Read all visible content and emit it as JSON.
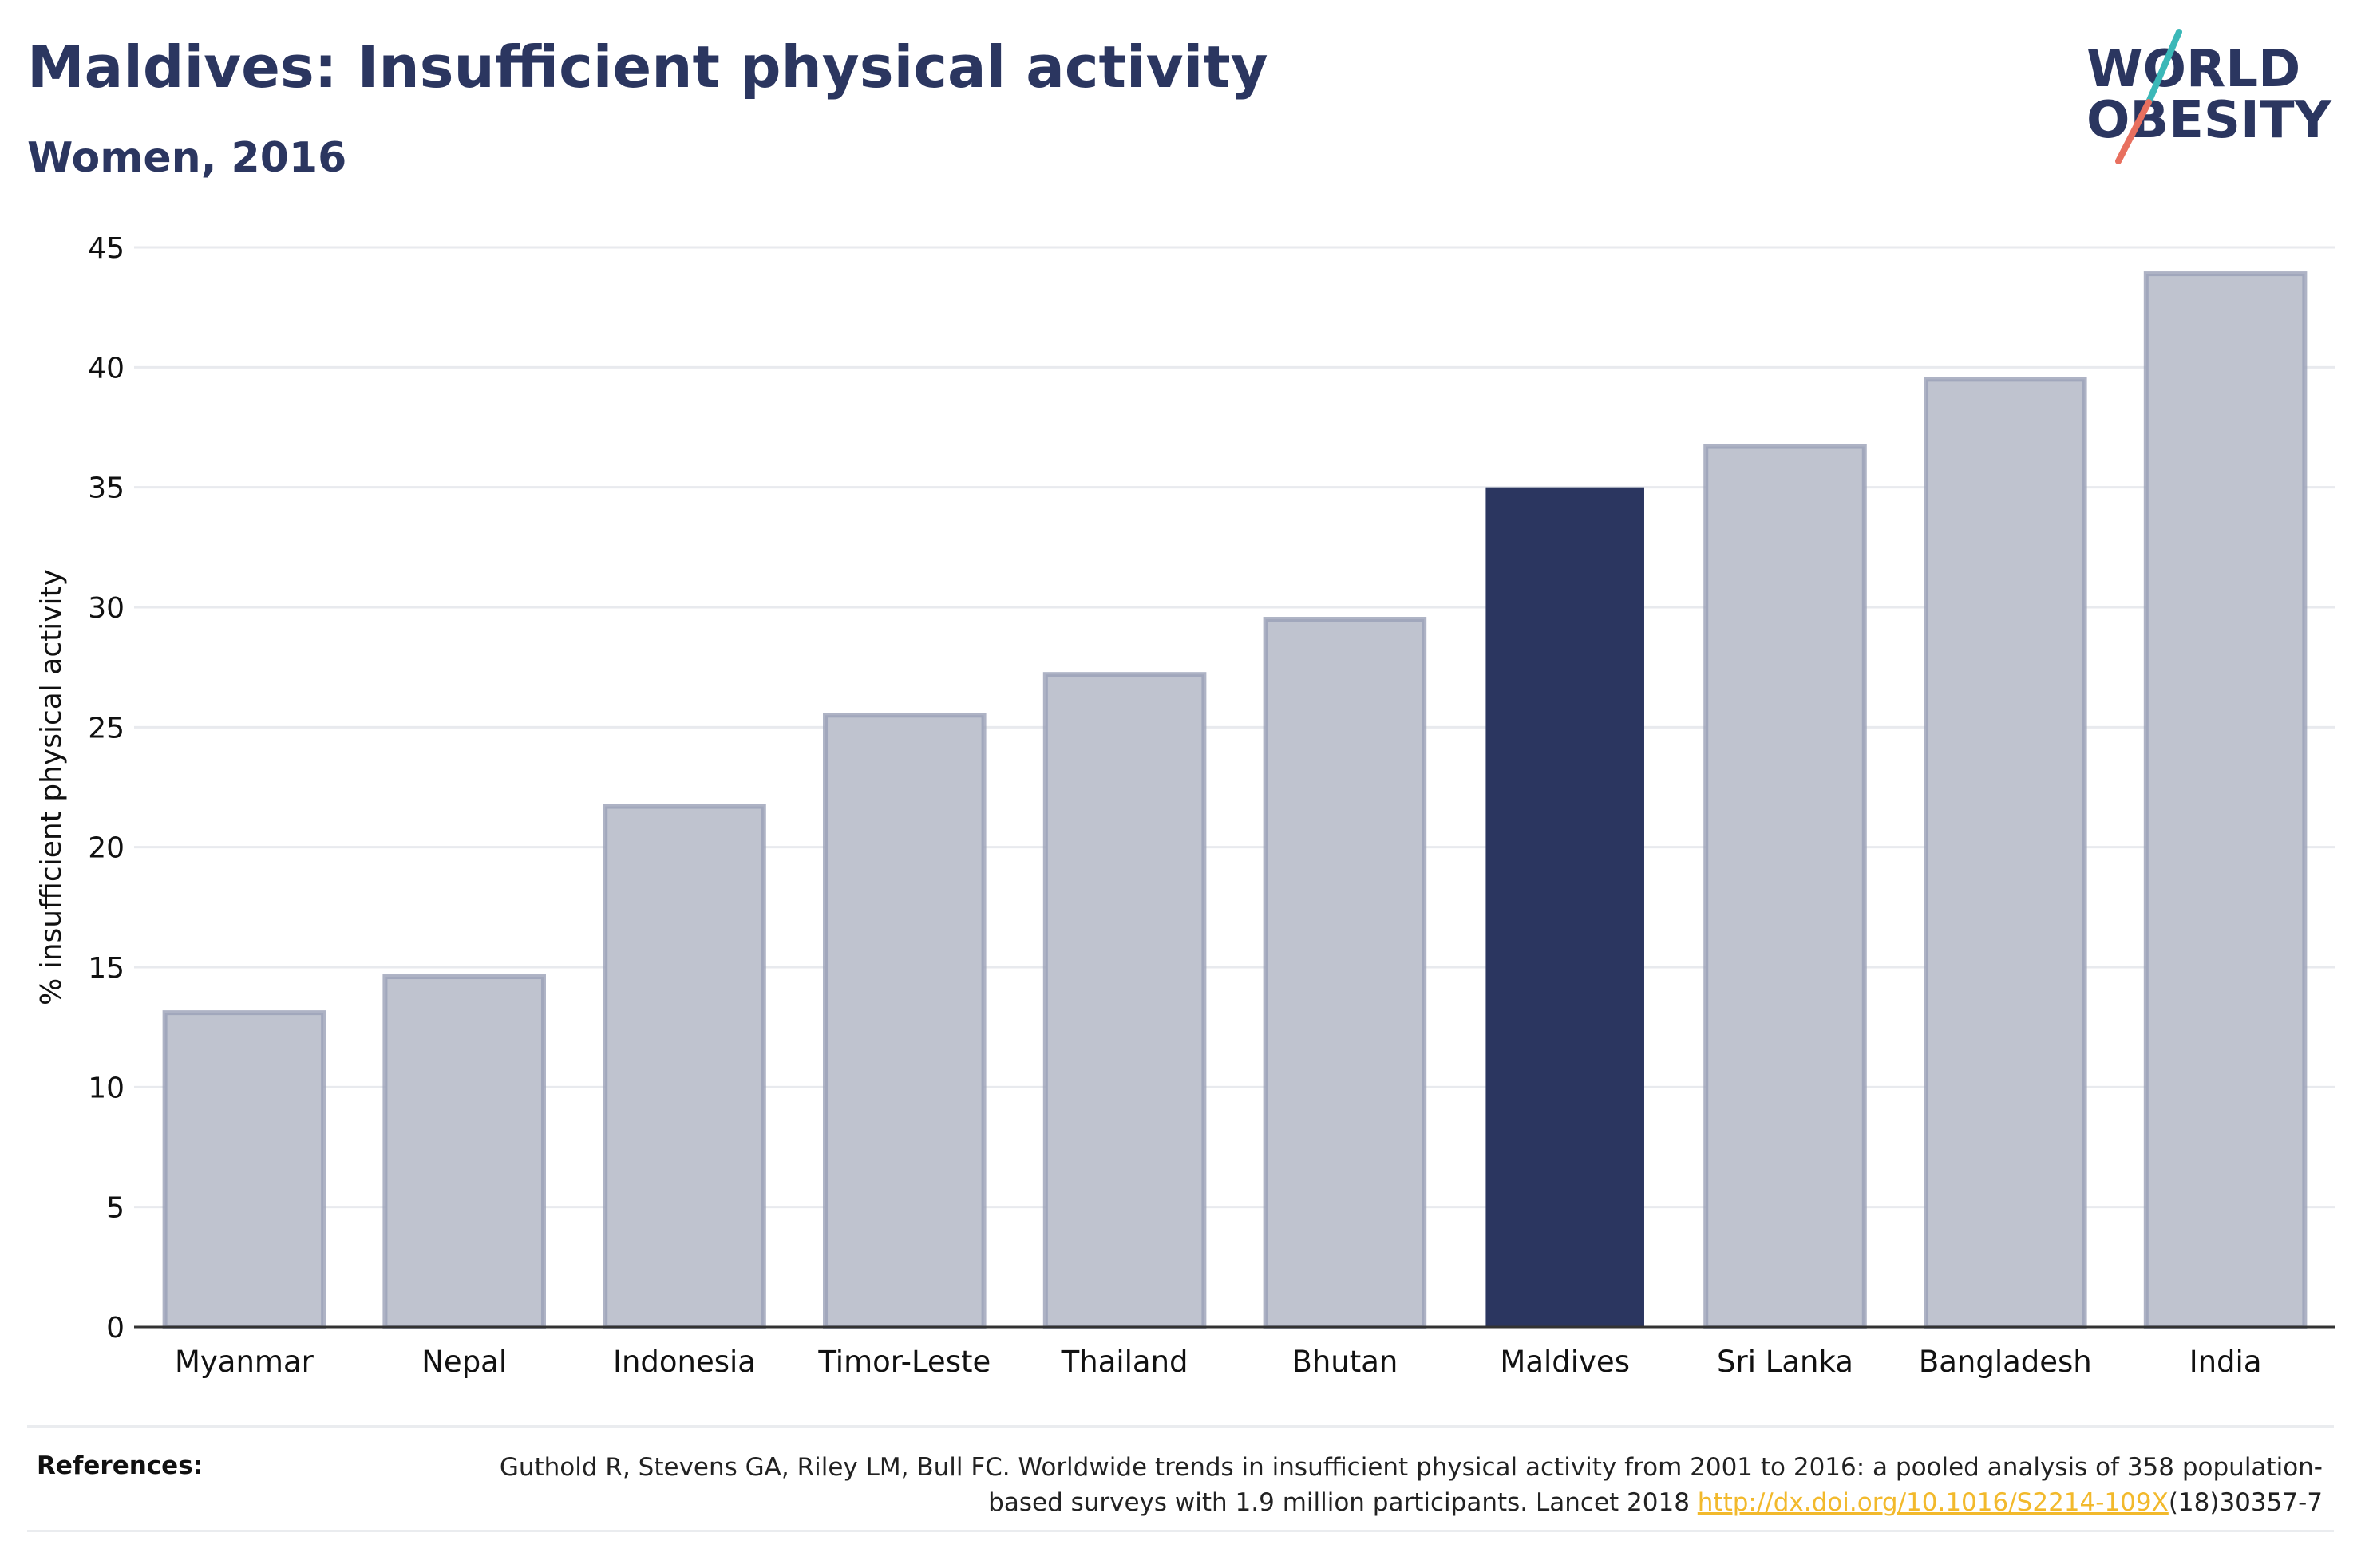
{
  "header": {
    "title": "Maldives: Insufficient physical activity",
    "subtitle": "Women, 2016"
  },
  "logo": {
    "line1": "WORLD",
    "line2": "OBESITY",
    "colors": {
      "text": "#2b3660",
      "slash_teal": "#3bb8b8",
      "slash_coral": "#e8705f"
    }
  },
  "chart_data": {
    "type": "bar",
    "categories": [
      "Myanmar",
      "Nepal",
      "Indonesia",
      "Timor-Leste",
      "Thailand",
      "Bhutan",
      "Maldives",
      "Sri Lanka",
      "Bangladesh",
      "India"
    ],
    "values": [
      13.1,
      14.6,
      21.7,
      25.5,
      27.2,
      29.5,
      35.0,
      36.7,
      39.5,
      43.9
    ],
    "highlight": "Maldives",
    "ylabel": "% insufficient physical activity",
    "xlabel": "",
    "ylim": [
      0,
      45
    ],
    "yticks": [
      0,
      5,
      10,
      15,
      20,
      25,
      30,
      35,
      40,
      45
    ],
    "grid": true,
    "colors": {
      "default_bar": "#bfc3cf",
      "default_border": "#9aa0b6",
      "highlight_bar": "#2b3660"
    }
  },
  "references": {
    "label": "References:",
    "text_before_link": "Guthold R, Stevens GA, Riley LM, Bull FC. Worldwide trends in insufficient physical activity from 2001 to 2016: a pooled analysis of 358 population-based surveys with 1.9 million participants. Lancet 2018 ",
    "link_text": "http://dx.doi.org/10.1016/S2214-109X",
    "text_after_link": "(18)30357-7"
  }
}
